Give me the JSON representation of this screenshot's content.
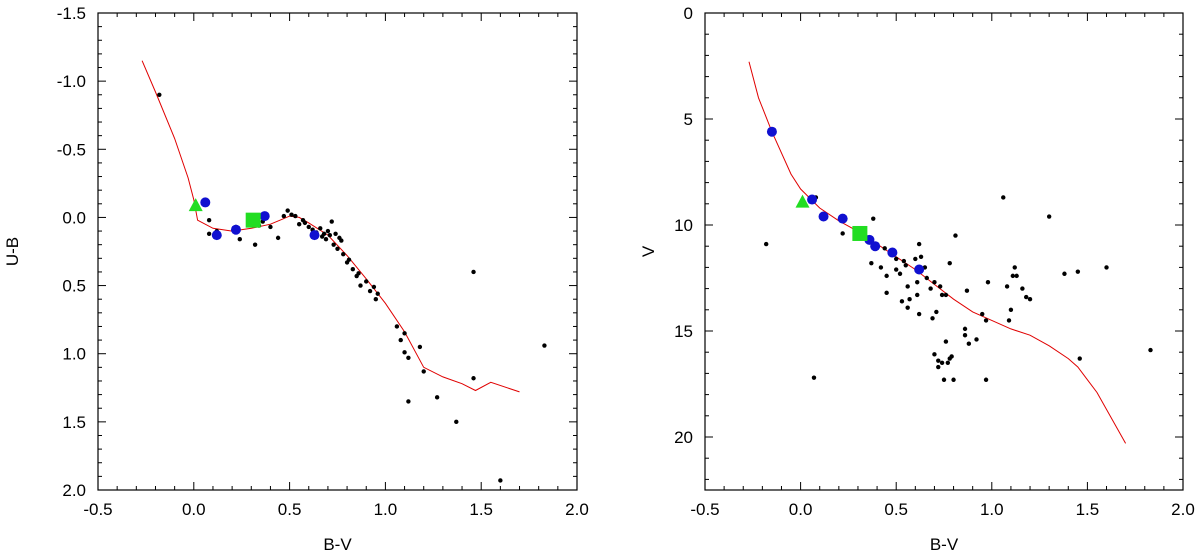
{
  "chart_data": [
    {
      "type": "scatter",
      "xlabel": "B-V",
      "ylabel": "U-B",
      "xlim": [
        -0.5,
        2.0
      ],
      "ylim": [
        -1.5,
        2.0
      ],
      "y_inverted": true,
      "grid": false,
      "x_ticks": [
        -0.5,
        0.0,
        0.5,
        1.0,
        1.5,
        2.0
      ],
      "x_tick_labels": [
        "-0.5",
        "0.0",
        "0.5",
        "1.0",
        "1.5",
        "2.0"
      ],
      "y_ticks": [
        -1.5,
        -1.0,
        -0.5,
        0.0,
        0.5,
        1.0,
        1.5,
        2.0
      ],
      "y_tick_labels": [
        "-1.5",
        "-1.0",
        "-0.5",
        "0.0",
        "0.5",
        "1.0",
        "1.5",
        "2.0"
      ],
      "series": [
        {
          "marker": "dot",
          "color": "#000000",
          "points": [
            [
              -0.18,
              -0.9
            ],
            [
              0.08,
              0.02
            ],
            [
              0.08,
              0.12
            ],
            [
              0.12,
              0.1
            ],
            [
              0.22,
              0.07
            ],
            [
              0.24,
              0.16
            ],
            [
              0.32,
              0.2
            ],
            [
              0.34,
              0.06
            ],
            [
              0.36,
              0.03
            ],
            [
              0.4,
              0.07
            ],
            [
              0.44,
              0.15
            ],
            [
              0.47,
              -0.01
            ],
            [
              0.49,
              -0.05
            ],
            [
              0.51,
              -0.02
            ],
            [
              0.53,
              -0.01
            ],
            [
              0.55,
              0.05
            ],
            [
              0.57,
              0.02
            ],
            [
              0.58,
              0.04
            ],
            [
              0.6,
              0.07
            ],
            [
              0.62,
              0.09
            ],
            [
              0.64,
              0.11
            ],
            [
              0.66,
              0.08
            ],
            [
              0.67,
              0.14
            ],
            [
              0.68,
              0.12
            ],
            [
              0.69,
              0.16
            ],
            [
              0.7,
              0.1
            ],
            [
              0.71,
              0.13
            ],
            [
              0.72,
              0.03
            ],
            [
              0.73,
              0.2
            ],
            [
              0.74,
              0.12
            ],
            [
              0.75,
              0.23
            ],
            [
              0.76,
              0.15
            ],
            [
              0.77,
              0.17
            ],
            [
              0.78,
              0.27
            ],
            [
              0.8,
              0.33
            ],
            [
              0.81,
              0.31
            ],
            [
              0.83,
              0.38
            ],
            [
              0.85,
              0.43
            ],
            [
              0.86,
              0.41
            ],
            [
              0.87,
              0.5
            ],
            [
              0.9,
              0.47
            ],
            [
              0.92,
              0.54
            ],
            [
              0.94,
              0.51
            ],
            [
              0.95,
              0.6
            ],
            [
              0.96,
              0.56
            ],
            [
              1.06,
              0.8
            ],
            [
              1.08,
              0.9
            ],
            [
              1.1,
              0.85
            ],
            [
              1.1,
              0.99
            ],
            [
              1.12,
              1.03
            ],
            [
              1.18,
              0.95
            ],
            [
              1.2,
              1.13
            ],
            [
              1.12,
              1.35
            ],
            [
              1.27,
              1.32
            ],
            [
              1.37,
              1.5
            ],
            [
              1.46,
              0.4
            ],
            [
              1.46,
              1.18
            ],
            [
              1.6,
              1.93
            ],
            [
              1.83,
              0.94
            ]
          ]
        },
        {
          "marker": "circle",
          "color": "#1010d0",
          "points": [
            [
              0.06,
              -0.11
            ],
            [
              0.12,
              0.13
            ],
            [
              0.22,
              0.09
            ],
            [
              0.37,
              -0.01
            ],
            [
              0.63,
              0.13
            ]
          ]
        },
        {
          "marker": "square",
          "color": "#22dd22",
          "points": [
            [
              0.31,
              0.02
            ]
          ]
        },
        {
          "marker": "triangle",
          "color": "#22dd22",
          "points": [
            [
              0.01,
              -0.09
            ]
          ]
        },
        {
          "marker": "line",
          "color": "#e00000",
          "points": [
            [
              -0.27,
              -1.15
            ],
            [
              -0.2,
              -0.92
            ],
            [
              -0.1,
              -0.58
            ],
            [
              -0.03,
              -0.29
            ],
            [
              0.0,
              -0.13
            ],
            [
              0.02,
              0.02
            ],
            [
              0.1,
              0.08
            ],
            [
              0.2,
              0.1
            ],
            [
              0.3,
              0.08
            ],
            [
              0.4,
              0.05
            ],
            [
              0.45,
              0.02
            ],
            [
              0.5,
              -0.01
            ],
            [
              0.55,
              0.0
            ],
            [
              0.6,
              0.04
            ],
            [
              0.7,
              0.13
            ],
            [
              0.8,
              0.28
            ],
            [
              0.9,
              0.45
            ],
            [
              1.0,
              0.63
            ],
            [
              1.1,
              0.84
            ],
            [
              1.2,
              1.1
            ],
            [
              1.3,
              1.17
            ],
            [
              1.4,
              1.22
            ],
            [
              1.47,
              1.27
            ],
            [
              1.55,
              1.21
            ],
            [
              1.7,
              1.28
            ]
          ]
        }
      ]
    },
    {
      "type": "scatter",
      "xlabel": "B-V",
      "ylabel": "V",
      "xlim": [
        -0.5,
        2.0
      ],
      "ylim": [
        0,
        22.5
      ],
      "y_inverted": true,
      "grid": false,
      "x_ticks": [
        -0.5,
        0.0,
        0.5,
        1.0,
        1.5,
        2.0
      ],
      "x_tick_labels": [
        "-0.5",
        "0.0",
        "0.5",
        "1.0",
        "1.5",
        "2.0"
      ],
      "y_ticks": [
        0,
        5,
        10,
        15,
        20
      ],
      "y_tick_labels": [
        "0",
        "5",
        "10",
        "15",
        "20"
      ],
      "series": [
        {
          "marker": "dot",
          "color": "#000000",
          "points": [
            [
              -0.18,
              10.9
            ],
            [
              0.07,
              17.2
            ],
            [
              0.08,
              8.7
            ],
            [
              0.22,
              10.4
            ],
            [
              0.37,
              11.8
            ],
            [
              0.38,
              9.7
            ],
            [
              0.42,
              12.0
            ],
            [
              0.44,
              11.1
            ],
            [
              0.45,
              12.4
            ],
            [
              0.45,
              13.2
            ],
            [
              0.48,
              11.3
            ],
            [
              0.5,
              11.6
            ],
            [
              0.5,
              12.1
            ],
            [
              0.52,
              12.3
            ],
            [
              0.53,
              13.6
            ],
            [
              0.54,
              11.7
            ],
            [
              0.55,
              11.9
            ],
            [
              0.56,
              12.9
            ],
            [
              0.56,
              13.9
            ],
            [
              0.57,
              13.5
            ],
            [
              0.6,
              11.6
            ],
            [
              0.61,
              12.7
            ],
            [
              0.61,
              13.3
            ],
            [
              0.62,
              10.9
            ],
            [
              0.62,
              14.2
            ],
            [
              0.63,
              11.5
            ],
            [
              0.65,
              12.0
            ],
            [
              0.66,
              12.5
            ],
            [
              0.68,
              13.0
            ],
            [
              0.69,
              14.4
            ],
            [
              0.7,
              12.7
            ],
            [
              0.7,
              16.1
            ],
            [
              0.71,
              14.1
            ],
            [
              0.72,
              16.4
            ],
            [
              0.72,
              16.7
            ],
            [
              0.73,
              12.9
            ],
            [
              0.74,
              13.3
            ],
            [
              0.74,
              16.5
            ],
            [
              0.75,
              17.3
            ],
            [
              0.76,
              15.5
            ],
            [
              0.76,
              13.3
            ],
            [
              0.77,
              16.5
            ],
            [
              0.78,
              16.3
            ],
            [
              0.78,
              11.8
            ],
            [
              0.79,
              16.2
            ],
            [
              0.8,
              17.3
            ],
            [
              0.81,
              10.5
            ],
            [
              0.86,
              14.9
            ],
            [
              0.86,
              15.2
            ],
            [
              0.87,
              13.1
            ],
            [
              0.88,
              15.6
            ],
            [
              0.92,
              15.4
            ],
            [
              0.95,
              14.2
            ],
            [
              0.97,
              14.5
            ],
            [
              0.97,
              17.3
            ],
            [
              0.98,
              12.7
            ],
            [
              1.06,
              8.7
            ],
            [
              1.08,
              12.9
            ],
            [
              1.09,
              14.5
            ],
            [
              1.1,
              14.0
            ],
            [
              1.11,
              12.4
            ],
            [
              1.12,
              12.0
            ],
            [
              1.13,
              12.4
            ],
            [
              1.16,
              13.0
            ],
            [
              1.18,
              13.4
            ],
            [
              1.2,
              13.5
            ],
            [
              1.3,
              9.6
            ],
            [
              1.38,
              12.3
            ],
            [
              1.45,
              12.2
            ],
            [
              1.46,
              16.3
            ],
            [
              1.6,
              12.0
            ],
            [
              1.83,
              15.9
            ]
          ]
        },
        {
          "marker": "circle",
          "color": "#1010d0",
          "points": [
            [
              -0.15,
              5.6
            ],
            [
              0.06,
              8.8
            ],
            [
              0.12,
              9.6
            ],
            [
              0.22,
              9.7
            ],
            [
              0.36,
              10.7
            ],
            [
              0.39,
              11.0
            ],
            [
              0.48,
              11.3
            ],
            [
              0.62,
              12.1
            ]
          ]
        },
        {
          "marker": "square",
          "color": "#22dd22",
          "points": [
            [
              0.31,
              10.4
            ]
          ]
        },
        {
          "marker": "triangle",
          "color": "#22dd22",
          "points": [
            [
              0.01,
              8.9
            ]
          ]
        },
        {
          "marker": "line",
          "color": "#e00000",
          "points": [
            [
              -0.27,
              2.3
            ],
            [
              -0.22,
              4.0
            ],
            [
              -0.15,
              5.6
            ],
            [
              -0.05,
              7.6
            ],
            [
              0.0,
              8.3
            ],
            [
              0.1,
              9.2
            ],
            [
              0.2,
              9.8
            ],
            [
              0.3,
              10.3
            ],
            [
              0.4,
              10.9
            ],
            [
              0.5,
              11.5
            ],
            [
              0.6,
              12.1
            ],
            [
              0.7,
              12.8
            ],
            [
              0.8,
              13.5
            ],
            [
              0.9,
              14.1
            ],
            [
              1.0,
              14.5
            ],
            [
              1.1,
              14.9
            ],
            [
              1.2,
              15.2
            ],
            [
              1.3,
              15.7
            ],
            [
              1.4,
              16.3
            ],
            [
              1.45,
              16.7
            ],
            [
              1.55,
              17.9
            ],
            [
              1.7,
              20.3
            ]
          ]
        }
      ]
    }
  ]
}
